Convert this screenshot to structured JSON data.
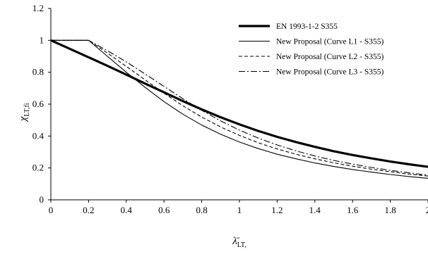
{
  "chart_data": {
    "type": "line",
    "xlabel": "λ̄",
    "xlabel_sub": "LT,",
    "ylabel": "χ",
    "ylabel_sub": "LT,fi",
    "xlim": [
      0,
      2
    ],
    "ylim": [
      0,
      1.2
    ],
    "x_ticks": [
      "0",
      "0.2",
      "0.4",
      "0.6",
      "0.8",
      "1",
      "1.2",
      "1.4",
      "1.6",
      "1.8",
      "2"
    ],
    "y_ticks": [
      "0",
      "0.2",
      "0.4",
      "0.6",
      "0.8",
      "1",
      "1.2"
    ],
    "legend_position": "top-right",
    "grid": false,
    "series": [
      {
        "name": "EN 1993-1-2 S355",
        "style": "thick-solid",
        "x": [
          0,
          0.1,
          0.2,
          0.3,
          0.4,
          0.5,
          0.6,
          0.7,
          0.8,
          0.9,
          1.0,
          1.1,
          1.2,
          1.3,
          1.4,
          1.5,
          1.6,
          1.7,
          1.8,
          1.9,
          2.0
        ],
        "y": [
          1.0,
          0.947,
          0.894,
          0.84,
          0.785,
          0.729,
          0.674,
          0.619,
          0.567,
          0.518,
          0.473,
          0.432,
          0.395,
          0.362,
          0.332,
          0.305,
          0.281,
          0.26,
          0.24,
          0.223,
          0.207
        ]
      },
      {
        "name": "New Proposal (Curve L1 - S355)",
        "style": "thin-solid",
        "x": [
          0,
          0.2,
          0.3,
          0.4,
          0.5,
          0.6,
          0.7,
          0.8,
          0.9,
          1.0,
          1.1,
          1.2,
          1.3,
          1.4,
          1.5,
          1.6,
          1.7,
          1.8,
          1.9,
          2.0
        ],
        "y": [
          1.0,
          1.0,
          0.9,
          0.8,
          0.705,
          0.616,
          0.537,
          0.469,
          0.411,
          0.362,
          0.321,
          0.286,
          0.257,
          0.231,
          0.209,
          0.19,
          0.174,
          0.159,
          0.146,
          0.135
        ]
      },
      {
        "name": "New Proposal (Curve L2 - S355)",
        "style": "dashed",
        "x": [
          0,
          0.2,
          0.3,
          0.4,
          0.5,
          0.6,
          0.7,
          0.8,
          0.9,
          1.0,
          1.1,
          1.2,
          1.3,
          1.4,
          1.5,
          1.6,
          1.7,
          1.8,
          1.9,
          2.0
        ],
        "y": [
          1.0,
          1.0,
          0.92,
          0.837,
          0.752,
          0.669,
          0.59,
          0.519,
          0.457,
          0.404,
          0.358,
          0.319,
          0.286,
          0.257,
          0.232,
          0.211,
          0.192,
          0.176,
          0.161,
          0.149
        ]
      },
      {
        "name": "New Proposal (Curve L3 - S355)",
        "style": "dash-dot",
        "x": [
          0,
          0.2,
          0.3,
          0.4,
          0.5,
          0.6,
          0.7,
          0.8,
          0.9,
          1.0,
          1.1,
          1.2,
          1.3,
          1.4,
          1.5,
          1.6,
          1.7,
          1.8,
          1.9,
          2.0
        ],
        "y": [
          1.0,
          1.0,
          0.935,
          0.865,
          0.789,
          0.711,
          0.634,
          0.561,
          0.495,
          0.437,
          0.387,
          0.344,
          0.307,
          0.275,
          0.247,
          0.224,
          0.203,
          0.185,
          0.169,
          0.155
        ]
      }
    ]
  },
  "colors": {
    "line": "#000000",
    "background": "#ffffff"
  }
}
